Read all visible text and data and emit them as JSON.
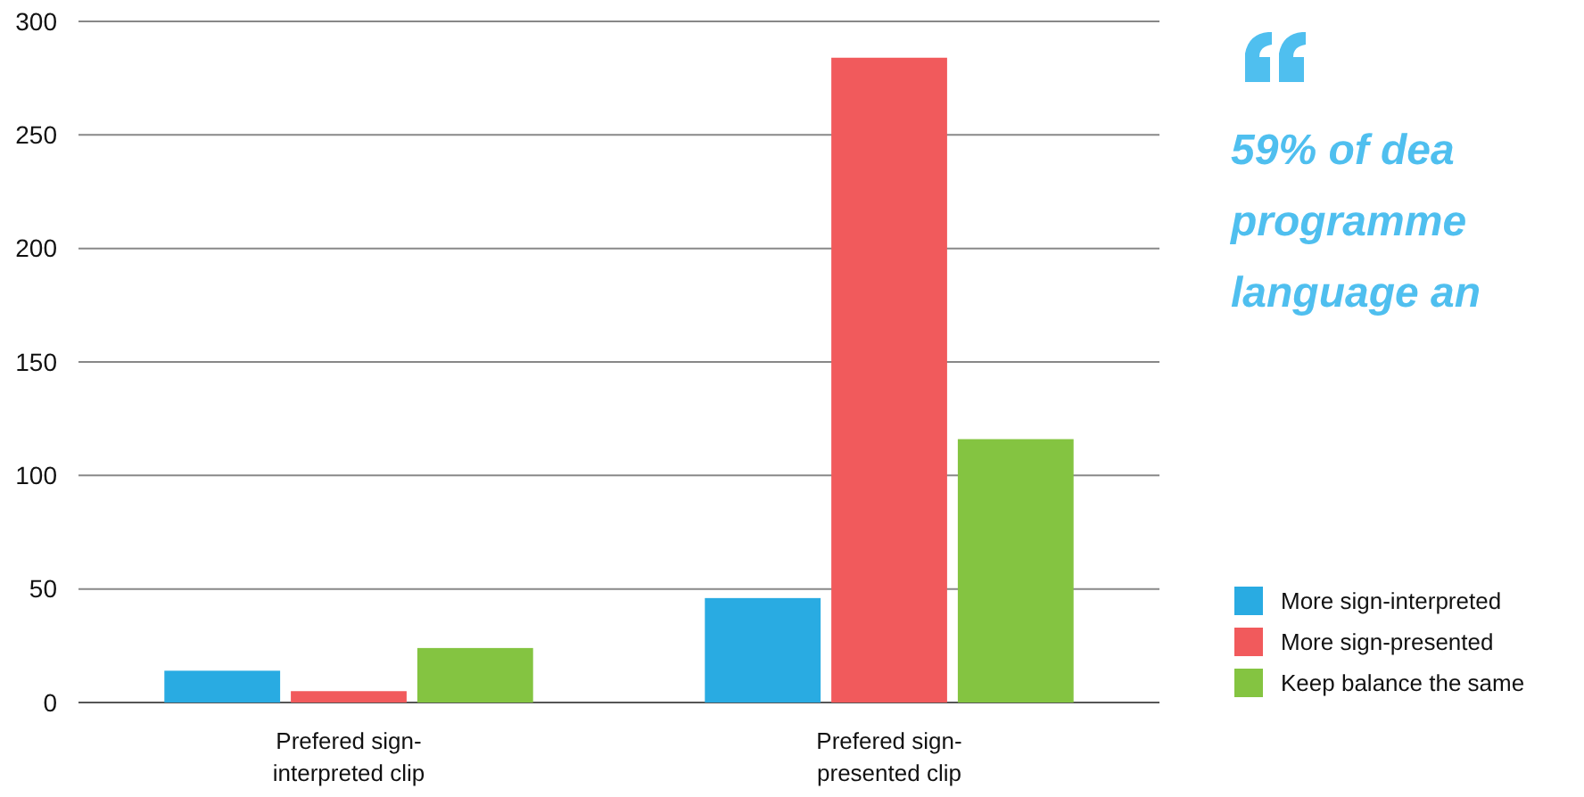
{
  "chart_data": {
    "type": "bar",
    "categories": [
      "Prefered sign-\ninterpreted clip",
      "Prefered sign-\npresented clip"
    ],
    "series": [
      {
        "name": "More sign-interpreted",
        "color": "#29abe2",
        "values": [
          14,
          46
        ]
      },
      {
        "name": "More sign-presented",
        "color": "#f15a5c",
        "values": [
          5,
          284
        ]
      },
      {
        "name": "Keep balance the same",
        "color": "#84c441",
        "values": [
          24,
          116
        ]
      }
    ],
    "ylim": [
      0,
      300
    ],
    "yticks": [
      0,
      50,
      100,
      150,
      200,
      250,
      300
    ],
    "grid": "y",
    "legend": "right",
    "annotations": [
      "59% of dea\nprogramme\nlanguage an"
    ]
  }
}
